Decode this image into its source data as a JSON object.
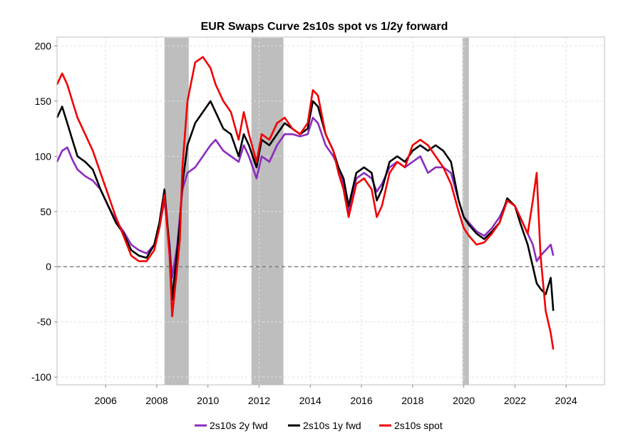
{
  "chart_data": {
    "type": "line",
    "title": "EUR Swaps Curve 2s10s spot vs 1/2y forward",
    "xlabel": "",
    "ylabel": "",
    "xlim": [
      2004.1,
      2025.5
    ],
    "ylim": [
      -107,
      208
    ],
    "x_ticks": [
      "2006",
      "2008",
      "2010",
      "2012",
      "2014",
      "2016",
      "2018",
      "2020",
      "2022",
      "2024"
    ],
    "y_ticks": [
      "200",
      "150",
      "100",
      "50",
      "0",
      "-50",
      "-100"
    ],
    "grid": true,
    "legend_position": "bottom-center",
    "zero_line": true,
    "shaded_periods": [
      [
        2008.3,
        2009.25
      ],
      [
        2011.7,
        2012.95
      ],
      [
        2019.95,
        2020.2
      ]
    ],
    "series": [
      {
        "name": "2s10s 2y fwd",
        "color": "#8B2BBE",
        "x": [
          2004.1,
          2004.3,
          2004.5,
          2004.7,
          2004.9,
          2005.2,
          2005.5,
          2005.8,
          2006.1,
          2006.4,
          2006.7,
          2007.0,
          2007.3,
          2007.6,
          2007.9,
          2008.1,
          2008.3,
          2008.5,
          2008.6,
          2008.8,
          2008.9,
          2009.0,
          2009.2,
          2009.5,
          2009.8,
          2010.1,
          2010.3,
          2010.6,
          2010.9,
          2011.2,
          2011.4,
          2011.6,
          2011.9,
          2012.1,
          2012.4,
          2012.7,
          2013.0,
          2013.3,
          2013.6,
          2013.9,
          2014.1,
          2014.3,
          2014.6,
          2014.9,
          2015.1,
          2015.3,
          2015.5,
          2015.8,
          2016.1,
          2016.4,
          2016.6,
          2016.8,
          2017.1,
          2017.4,
          2017.7,
          2018.0,
          2018.3,
          2018.6,
          2018.9,
          2019.2,
          2019.5,
          2019.8,
          2020.0,
          2020.2,
          2020.5,
          2020.8,
          2021.1,
          2021.4,
          2021.7,
          2022.0,
          2022.2,
          2022.5,
          2022.7,
          2022.85,
          2023.0,
          2023.2,
          2023.4,
          2023.5
        ],
        "y": [
          95,
          105,
          108,
          97,
          88,
          82,
          78,
          70,
          55,
          42,
          32,
          20,
          15,
          12,
          20,
          35,
          60,
          20,
          -10,
          20,
          45,
          70,
          85,
          90,
          100,
          110,
          115,
          105,
          100,
          95,
          110,
          100,
          80,
          100,
          95,
          110,
          120,
          120,
          118,
          120,
          135,
          130,
          110,
          100,
          90,
          75,
          50,
          80,
          85,
          80,
          68,
          75,
          90,
          95,
          90,
          95,
          100,
          85,
          90,
          90,
          85,
          60,
          45,
          40,
          32,
          28,
          35,
          45,
          60,
          55,
          45,
          30,
          20,
          5,
          10,
          15,
          20,
          10
        ]
      },
      {
        "name": "2s10s 1y fwd",
        "color": "#000000",
        "x": [
          2004.1,
          2004.3,
          2004.5,
          2004.7,
          2004.9,
          2005.2,
          2005.5,
          2005.8,
          2006.1,
          2006.4,
          2006.7,
          2007.0,
          2007.3,
          2007.6,
          2007.9,
          2008.1,
          2008.3,
          2008.5,
          2008.6,
          2008.8,
          2008.9,
          2009.0,
          2009.2,
          2009.5,
          2009.8,
          2010.1,
          2010.3,
          2010.6,
          2010.9,
          2011.2,
          2011.4,
          2011.6,
          2011.9,
          2012.1,
          2012.4,
          2012.7,
          2013.0,
          2013.3,
          2013.6,
          2013.9,
          2014.1,
          2014.3,
          2014.6,
          2014.9,
          2015.1,
          2015.3,
          2015.5,
          2015.8,
          2016.1,
          2016.4,
          2016.6,
          2016.8,
          2017.1,
          2017.4,
          2017.7,
          2018.0,
          2018.3,
          2018.6,
          2018.9,
          2019.2,
          2019.5,
          2019.8,
          2020.0,
          2020.2,
          2020.5,
          2020.8,
          2021.1,
          2021.4,
          2021.7,
          2022.0,
          2022.2,
          2022.5,
          2022.7,
          2022.85,
          2023.0,
          2023.2,
          2023.4,
          2023.5
        ],
        "y": [
          135,
          145,
          130,
          115,
          100,
          95,
          88,
          70,
          55,
          40,
          30,
          15,
          10,
          8,
          20,
          40,
          70,
          15,
          -30,
          15,
          40,
          75,
          110,
          130,
          140,
          150,
          140,
          125,
          120,
          100,
          120,
          110,
          90,
          115,
          110,
          120,
          130,
          125,
          120,
          125,
          150,
          145,
          120,
          105,
          90,
          80,
          55,
          85,
          90,
          85,
          60,
          70,
          95,
          100,
          95,
          105,
          110,
          105,
          110,
          105,
          95,
          60,
          45,
          38,
          30,
          25,
          32,
          40,
          62,
          55,
          40,
          20,
          0,
          -15,
          -20,
          -25,
          -10,
          -40
        ]
      },
      {
        "name": "2s10s spot",
        "color": "#F20000",
        "x": [
          2004.1,
          2004.3,
          2004.5,
          2004.7,
          2004.9,
          2005.2,
          2005.5,
          2005.8,
          2006.1,
          2006.4,
          2006.7,
          2007.0,
          2007.3,
          2007.6,
          2007.9,
          2008.1,
          2008.3,
          2008.5,
          2008.6,
          2008.8,
          2008.9,
          2009.0,
          2009.2,
          2009.5,
          2009.8,
          2010.1,
          2010.3,
          2010.6,
          2010.9,
          2011.2,
          2011.4,
          2011.6,
          2011.9,
          2012.1,
          2012.4,
          2012.7,
          2013.0,
          2013.3,
          2013.6,
          2013.9,
          2014.1,
          2014.3,
          2014.6,
          2014.9,
          2015.1,
          2015.3,
          2015.5,
          2015.8,
          2016.1,
          2016.4,
          2016.6,
          2016.8,
          2017.1,
          2017.4,
          2017.7,
          2018.0,
          2018.3,
          2018.6,
          2018.9,
          2019.2,
          2019.5,
          2019.8,
          2020.0,
          2020.2,
          2020.5,
          2020.8,
          2021.1,
          2021.4,
          2021.7,
          2022.0,
          2022.2,
          2022.5,
          2022.7,
          2022.85,
          2023.0,
          2023.2,
          2023.4,
          2023.5
        ],
        "y": [
          165,
          175,
          165,
          150,
          135,
          120,
          105,
          85,
          65,
          45,
          28,
          10,
          5,
          5,
          15,
          35,
          65,
          10,
          -45,
          0,
          25,
          90,
          150,
          185,
          190,
          180,
          165,
          150,
          140,
          115,
          140,
          120,
          95,
          120,
          115,
          130,
          135,
          125,
          120,
          130,
          160,
          155,
          120,
          105,
          85,
          70,
          45,
          75,
          80,
          70,
          45,
          55,
          85,
          95,
          90,
          110,
          115,
          110,
          100,
          90,
          75,
          50,
          35,
          28,
          20,
          22,
          30,
          40,
          60,
          55,
          45,
          30,
          60,
          85,
          10,
          -40,
          -60,
          -75
        ]
      }
    ]
  }
}
